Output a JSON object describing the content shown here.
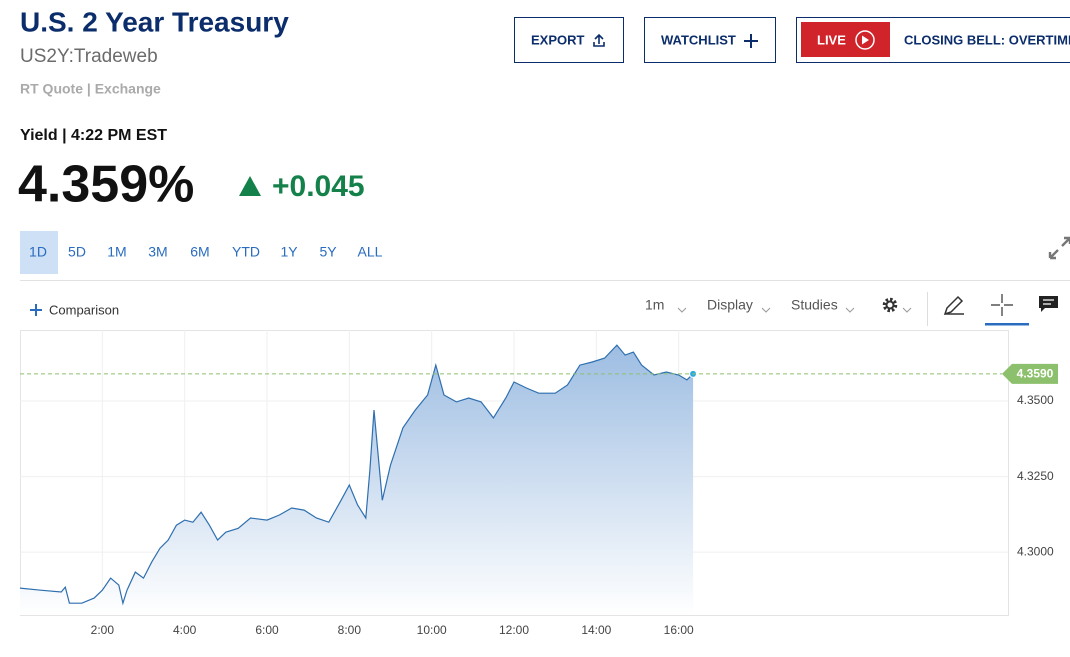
{
  "header": {
    "title": "U.S. 2 Year Treasury",
    "symbol": "US2Y:Tradeweb",
    "source": "RT Quote | Exchange"
  },
  "buttons": [
    "EXPORT",
    "WATCHLIST"
  ],
  "live": {
    "badge": "LIVE",
    "text": "CLOSING BELL: OVERTIME"
  },
  "quote": {
    "label": "Yield | 4:22 PM EST",
    "price": "4.359%",
    "change": "+0.045"
  },
  "ranges": [
    "1D",
    "5D",
    "1M",
    "3M",
    "6M",
    "YTD",
    "1Y",
    "5Y",
    "ALL"
  ],
  "toolbar": {
    "comparison": "Comparison",
    "interval": "1m",
    "display": "Display",
    "studies": "Studies"
  },
  "chart_data": {
    "type": "area",
    "color": "#2f6faf",
    "grid": true,
    "x": [
      0,
      0.5,
      1,
      1.1,
      1.2,
      1.5,
      1.8,
      2,
      2.2,
      2.4,
      2.5,
      2.6,
      2.8,
      3,
      3.2,
      3.4,
      3.6,
      3.8,
      4,
      4.2,
      4.4,
      4.6,
      4.8,
      5,
      5.3,
      5.6,
      6,
      6.3,
      6.6,
      6.9,
      7.2,
      7.5,
      7.8,
      8,
      8.2,
      8.4,
      8.5,
      8.6,
      8.8,
      9,
      9.3,
      9.6,
      9.9,
      10.1,
      10.3,
      10.6,
      10.9,
      11.2,
      11.5,
      11.8,
      12,
      12.3,
      12.6,
      13,
      13.3,
      13.6,
      13.9,
      14.2,
      14.5,
      14.7,
      14.9,
      15.1,
      15.4,
      15.7,
      16,
      16.2,
      16.35
    ],
    "values": [
      4.2881,
      4.2874,
      4.2868,
      4.2884,
      4.2831,
      4.2831,
      4.2848,
      4.2874,
      4.2914,
      4.2891,
      4.2831,
      4.2874,
      4.2934,
      4.2914,
      4.2967,
      4.3013,
      4.304,
      4.3089,
      4.3106,
      4.3099,
      4.3132,
      4.3089,
      4.304,
      4.3066,
      4.3079,
      4.3113,
      4.3106,
      4.3123,
      4.3146,
      4.3139,
      4.3113,
      4.3099,
      4.3172,
      4.3222,
      4.3156,
      4.3113,
      4.3272,
      4.347,
      4.3172,
      4.3288,
      4.3411,
      4.347,
      4.352,
      4.3619,
      4.352,
      4.3497,
      4.351,
      4.3497,
      4.3444,
      4.351,
      4.3563,
      4.3543,
      4.3526,
      4.3526,
      4.3553,
      4.3619,
      4.3629,
      4.3642,
      4.3685,
      4.3652,
      4.3662,
      4.3619,
      4.3586,
      4.3596,
      4.3586,
      4.357,
      4.359
    ],
    "xlim": [
      0,
      24
    ],
    "xticks": [
      {
        "value": 2,
        "label": "2:00"
      },
      {
        "value": 4,
        "label": "4:00"
      },
      {
        "value": 6,
        "label": "6:00"
      },
      {
        "value": 8,
        "label": "8:00"
      },
      {
        "value": 10,
        "label": "10:00"
      },
      {
        "value": 12,
        "label": "12:00"
      },
      {
        "value": 14,
        "label": "14:00"
      },
      {
        "value": 16,
        "label": "16:00"
      }
    ],
    "ylim": [
      4.2792,
      4.3735
    ],
    "yticks": [
      {
        "value": 4.3,
        "label": "4.3000"
      },
      {
        "value": 4.325,
        "label": "4.3250"
      },
      {
        "value": 4.35,
        "label": "4.3500"
      }
    ],
    "current": {
      "value": 4.359,
      "label": "4.3590",
      "color": "#8cc06c"
    }
  }
}
